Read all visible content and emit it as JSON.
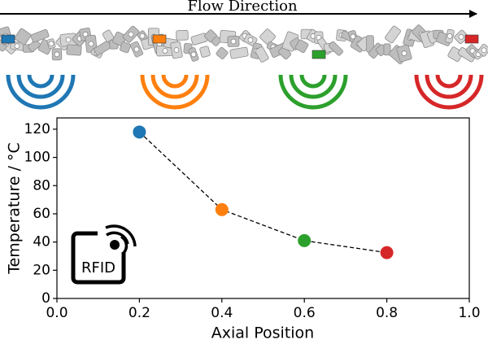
{
  "chart_data": {
    "type": "scatter",
    "flow_label": "Flow Direction",
    "icon_label": "RFID",
    "x_label": "Axial Position",
    "y_label": "Temperature / °C",
    "x": [
      0.2,
      0.4,
      0.6,
      0.8
    ],
    "values": [
      118,
      63,
      41,
      32.5
    ],
    "colors": [
      "#1f77b4",
      "#ff7f0e",
      "#2ca02c",
      "#d62728"
    ],
    "line_color": "#000000",
    "line_style": "dashed",
    "xlim": [
      0,
      1
    ],
    "ylim": [
      0,
      128
    ],
    "xticks": [
      {
        "value": 0,
        "label": "0.0"
      },
      {
        "value": 0.2,
        "label": "0.2"
      },
      {
        "value": 0.4,
        "label": "0.4"
      },
      {
        "value": 0.6,
        "label": "0.6"
      },
      {
        "value": 0.8,
        "label": "0.8"
      },
      {
        "value": 1,
        "label": "1.0"
      }
    ],
    "yticks": [
      0,
      20,
      40,
      60,
      80,
      100,
      120
    ]
  }
}
